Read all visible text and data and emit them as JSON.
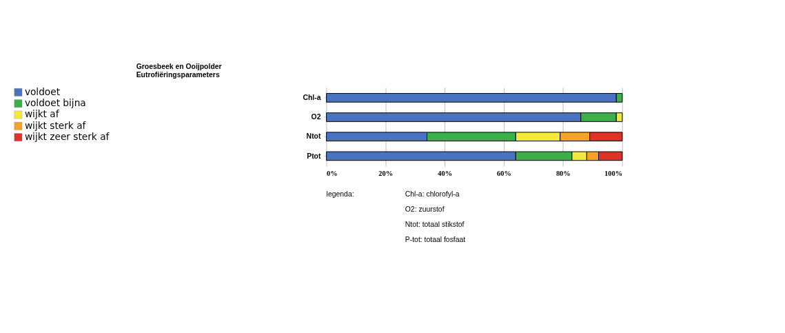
{
  "chart_data": {
    "type": "bar",
    "orientation": "horizontal",
    "stacked": true,
    "title": [
      "Groesbeek en Ooijpolder",
      "Eutrofiëringsparameters"
    ],
    "categories": [
      "Chl-a",
      "O2",
      "Ntot",
      "Ptot"
    ],
    "series": [
      {
        "name": "voldoet",
        "color": "#4a72c0",
        "values": [
          98,
          86,
          34,
          64
        ]
      },
      {
        "name": "voldoet bijna",
        "color": "#3bb04a",
        "values": [
          2,
          12,
          30,
          19
        ]
      },
      {
        "name": "wijkt af",
        "color": "#f2e93a",
        "values": [
          0,
          2,
          15,
          5
        ]
      },
      {
        "name": "wijkt sterk af",
        "color": "#f4a22a",
        "values": [
          0,
          0,
          10,
          4
        ]
      },
      {
        "name": "wijkt zeer sterk af",
        "color": "#dd3226",
        "values": [
          0,
          0,
          11,
          8
        ]
      }
    ],
    "xlim": [
      0,
      100
    ],
    "xticks": [
      {
        "value": 0,
        "label": "0%"
      },
      {
        "value": 20,
        "label": "20%"
      },
      {
        "value": 40,
        "label": "40%"
      },
      {
        "value": 60,
        "label": "60%"
      },
      {
        "value": 80,
        "label": "80%"
      },
      {
        "value": 100,
        "label": "100%"
      }
    ],
    "grid": "x",
    "legend": "left",
    "annotations": [
      "legenda:",
      "Chl-a: chlorofyl-a",
      "O2: zuurstof",
      "Ntot: totaal stikstof",
      "P-tot: totaal fosfaat"
    ]
  }
}
